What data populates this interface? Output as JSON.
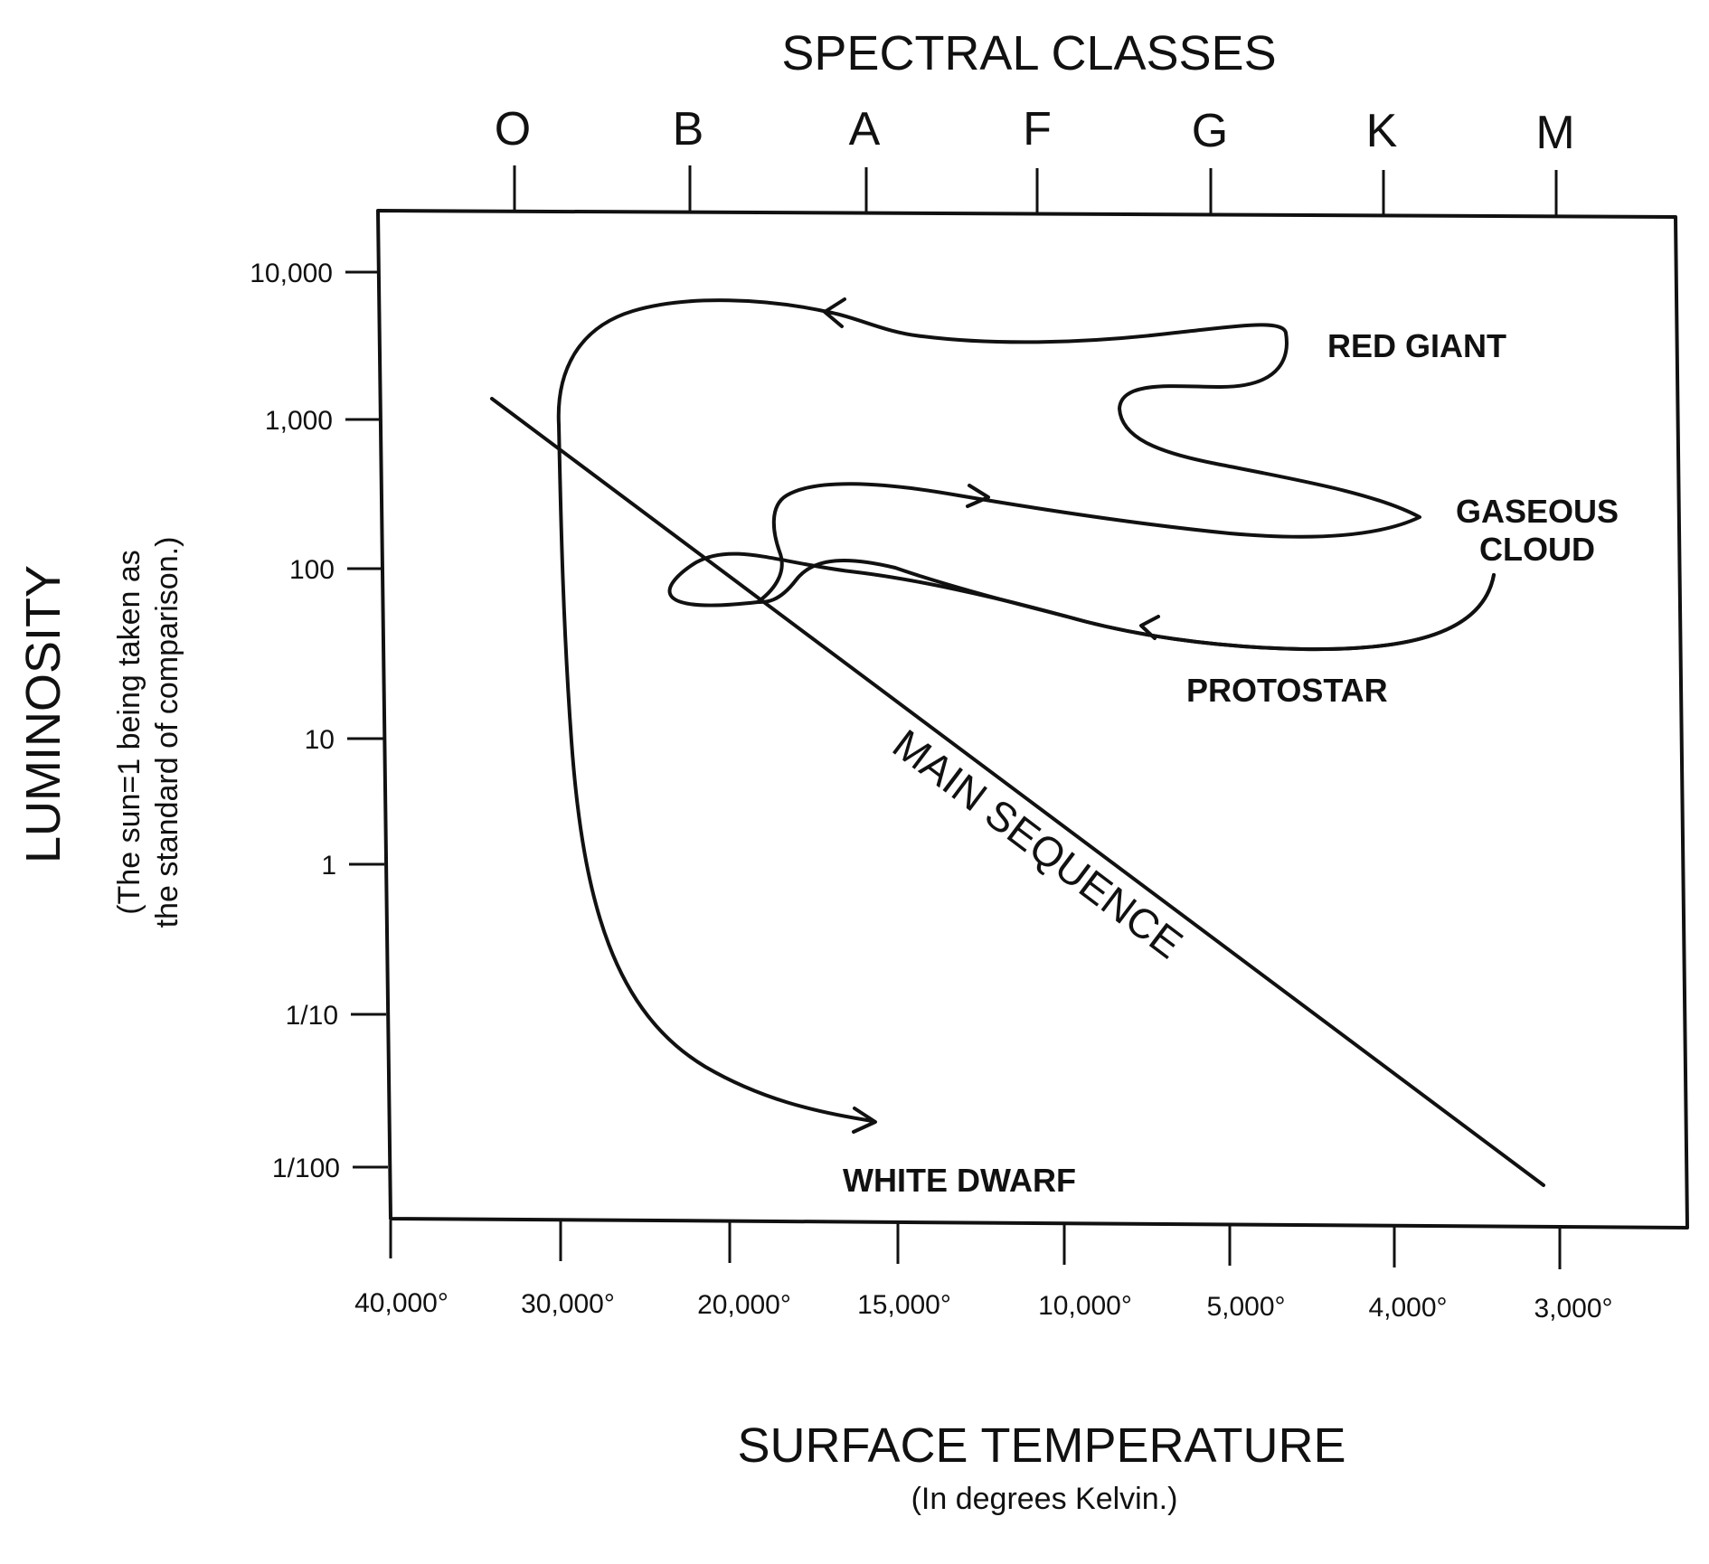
{
  "spectral_title": "SPECTRAL CLASSES",
  "spectral_classes": [
    "O",
    "B",
    "A",
    "F",
    "G",
    "K",
    "M"
  ],
  "y_axis": {
    "title": "LUMINOSITY",
    "subtitle_line1": "(The sun=1 being taken as",
    "subtitle_line2": "the standard of comparison.)",
    "ticks": [
      "10,000",
      "1,000",
      "100",
      "10",
      "1",
      "1/10",
      "1/100"
    ]
  },
  "x_axis": {
    "title": "SURFACE TEMPERATURE",
    "subtitle": "(In degrees Kelvin.)",
    "ticks": [
      "40,000°",
      "30,000°",
      "20,000°",
      "15,000°",
      "10,000°",
      "5,000°",
      "4,000°",
      "3,000°"
    ]
  },
  "labels": {
    "red_giant": "RED GIANT",
    "gaseous": "GASEOUS",
    "cloud": "CLOUD",
    "protostar": "PROTOSTAR",
    "main_sequence": "MAIN SEQUENCE",
    "white_dwarf": "WHITE DWARF"
  }
}
